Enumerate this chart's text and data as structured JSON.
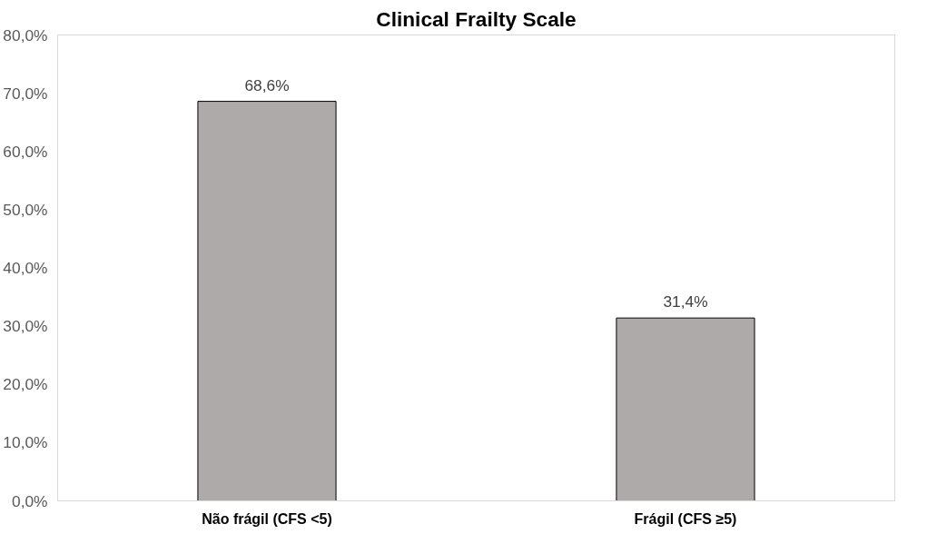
{
  "chart_data": {
    "type": "bar",
    "title": "Clinical Frailty Scale",
    "categories": [
      "Não frágil (CFS <5)",
      "Frágil (CFS ≥5)"
    ],
    "values": [
      68.6,
      31.4
    ],
    "color": "#aeaaaa",
    "value_labels": [
      "68,6%",
      "31,4%"
    ],
    "ylim": [
      0,
      80
    ],
    "yticks": [
      {
        "value": 0,
        "label": "0,0%"
      },
      {
        "value": 10,
        "label": "10,0%"
      },
      {
        "value": 20,
        "label": "20,0%"
      },
      {
        "value": 30,
        "label": "30,0%"
      },
      {
        "value": 40,
        "label": "40,0%"
      },
      {
        "value": 50,
        "label": "50,0%"
      },
      {
        "value": 60,
        "label": "60,0%"
      },
      {
        "value": 70,
        "label": "70,0%"
      },
      {
        "value": 80,
        "label": "80,0%"
      }
    ],
    "grid": false
  }
}
